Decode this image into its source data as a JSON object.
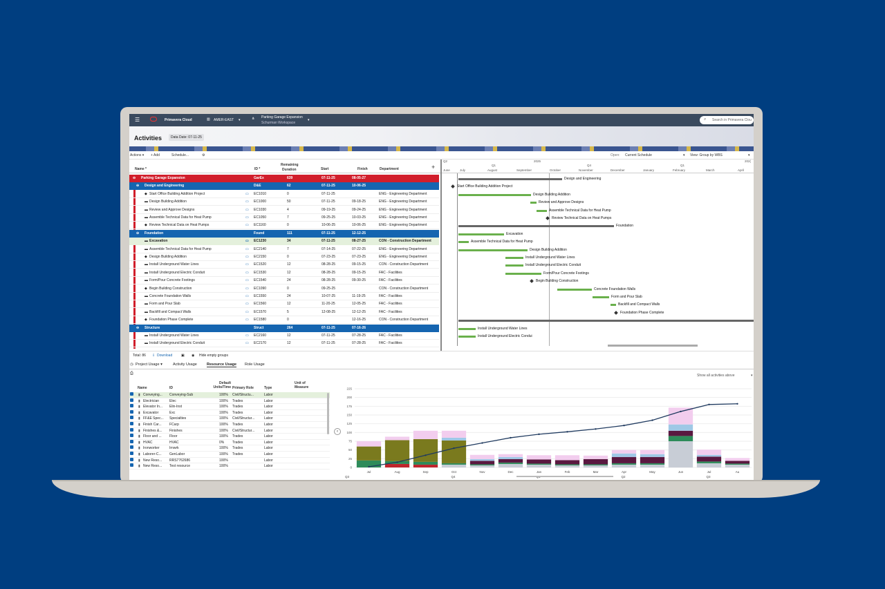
{
  "app": {
    "name": "Primavera Cloud",
    "region": "AMER-EAST",
    "project": "Parking Garage Expansion",
    "workspace": "Schurman Workspace",
    "search_placeholder": "Search in Primavera Clou"
  },
  "page": {
    "title": "Activities",
    "data_date": "Data Date: 07-11-25"
  },
  "toolbar": {
    "actions": "Actions ▾",
    "add": "+ Add",
    "schedule": "Schedule...",
    "open_label": "Open:",
    "open_value": "Current Schedule",
    "view_label": "View: Group by WBS"
  },
  "grid": {
    "columns": {
      "name": "Name *",
      "id": "ID *",
      "remaining": "Remaining",
      "duration": "Duration",
      "start": "Start",
      "finish": "Finish",
      "department": "Department"
    },
    "rows": [
      {
        "kind": "top",
        "name": "Parking Garage Expansion",
        "id": "GarEx",
        "dur": "639",
        "start": "07-11-25",
        "finish": "08-05-27",
        "dept": ""
      },
      {
        "kind": "wbs",
        "name": "Design and Engineering",
        "id": "D&E",
        "dur": "62",
        "start": "07-11-25",
        "finish": "10-06-25",
        "dept": ""
      },
      {
        "kind": "act",
        "name": "Start Office Building Addition Project",
        "id": "EC1010",
        "dur": "0",
        "start": "07-11-25",
        "finish": "",
        "dept": "ENG - Engineering Department"
      },
      {
        "kind": "act",
        "name": "Design Building Addition",
        "id": "EC1000",
        "dur": "50",
        "start": "07-11-25",
        "finish": "09-18-25",
        "dept": "ENG - Engineering Department"
      },
      {
        "kind": "act",
        "name": "Review and Approve Designs",
        "id": "EC1030",
        "dur": "4",
        "start": "09-19-25",
        "finish": "09-24-25",
        "dept": "ENG - Engineering Department"
      },
      {
        "kind": "act",
        "name": "Assemble Technical Data for Heat Pump",
        "id": "EC1050",
        "dur": "7",
        "start": "09-25-25",
        "finish": "10-03-25",
        "dept": "ENG - Engineering Department"
      },
      {
        "kind": "act",
        "name": "Review Technical Data on Heat Pumps",
        "id": "EC1160",
        "dur": "0",
        "start": "10-06-25",
        "finish": "10-06-25",
        "dept": "ENG - Engineering Department"
      },
      {
        "kind": "wbs",
        "name": "Foundation",
        "id": "Found",
        "dur": "111",
        "start": "07-11-25",
        "finish": "12-12-25",
        "dept": ""
      },
      {
        "kind": "sel",
        "name": "Excavation",
        "id": "EC1230",
        "dur": "34",
        "start": "07-11-25",
        "finish": "08-27-25",
        "dept": "CON - Construction Department"
      },
      {
        "kind": "act",
        "name": "Assemble Technical Data for Heat Pump",
        "id": "EC2140",
        "dur": "7",
        "start": "07-14-25",
        "finish": "07-22-25",
        "dept": "ENG - Engineering Department"
      },
      {
        "kind": "act",
        "name": "Design Building Addition",
        "id": "EC2150",
        "dur": "0",
        "start": "07-23-25",
        "finish": "07-23-25",
        "dept": "ENG - Engineering Department"
      },
      {
        "kind": "act",
        "name": "Install Underground Water Lines",
        "id": "EC1520",
        "dur": "12",
        "start": "08-28-25",
        "finish": "09-15-25",
        "dept": "CON - Construction Department"
      },
      {
        "kind": "act",
        "name": "Install Underground Electric Conduit",
        "id": "EC1530",
        "dur": "12",
        "start": "08-28-25",
        "finish": "09-15-25",
        "dept": "FAC - Facilities"
      },
      {
        "kind": "act",
        "name": "Form/Pour Concrete Footings",
        "id": "EC1540",
        "dur": "24",
        "start": "08-28-25",
        "finish": "09-30-25",
        "dept": "FAC - Facilities"
      },
      {
        "kind": "act",
        "name": "Begin Building Construction",
        "id": "EC1090",
        "dur": "0",
        "start": "09-25-25",
        "finish": "",
        "dept": "CON - Construction Department"
      },
      {
        "kind": "act",
        "name": "Concrete Foundation Walls",
        "id": "EC1550",
        "dur": "24",
        "start": "10-07-25",
        "finish": "11-19-25",
        "dept": "FAC - Facilities"
      },
      {
        "kind": "act",
        "name": "Form and Pour Slab",
        "id": "EC1560",
        "dur": "12",
        "start": "11-20-25",
        "finish": "12-05-25",
        "dept": "FAC - Facilities"
      },
      {
        "kind": "act",
        "name": "Backfill and Compact Walls",
        "id": "EC1570",
        "dur": "5",
        "start": "12-08-25",
        "finish": "12-12-25",
        "dept": "FAC - Facilities"
      },
      {
        "kind": "act",
        "name": "Foundation Phase Complete",
        "id": "EC1580",
        "dur": "0",
        "start": "",
        "finish": "12-16-25",
        "dept": "CON - Construction Department"
      },
      {
        "kind": "wbs",
        "name": "Structure",
        "id": "Struct",
        "dur": "264",
        "start": "07-11-25",
        "finish": "07-16-26",
        "dept": ""
      },
      {
        "kind": "act",
        "name": "Install Underground Water Lines",
        "id": "EC2160",
        "dur": "12",
        "start": "07-11-25",
        "finish": "07-28-25",
        "dept": "FAC - Facilities"
      },
      {
        "kind": "act",
        "name": "Install Underground Electric Conduit",
        "id": "EC2170",
        "dur": "12",
        "start": "07-11-25",
        "finish": "07-28-25",
        "dept": "FAC - Facilities"
      }
    ]
  },
  "gantt": {
    "year": "2025",
    "next_year": "202(",
    "quarters": [
      "Q2",
      "Q1",
      "Q4",
      "Q1"
    ],
    "months": [
      "June",
      "July",
      "August",
      "September",
      "October",
      "November",
      "December",
      "January",
      "February",
      "March",
      "April"
    ],
    "labels": [
      "Design and Engineering",
      "Start Office Building Addition Project",
      "Design Building Addition",
      "Review and Approve Designs",
      "Assemble Technical Data for Heat Pump",
      "Review Technical Data on Heat Pumps",
      "Foundation",
      "Excavation",
      "Assemble Technical Data for Heat Pump",
      "Design Building Addition",
      "Install Underground Water Lines",
      "Install Underground Electric Conduit",
      "Form/Pour Concrete Footings",
      "Begin Building Construction",
      "Concrete Foundation Walls",
      "Form and Pour Slab",
      "Backfill and Compact Walls",
      "Foundation Phase Complete",
      "Install Underground Water Lines",
      "Install Underground Electric Condui"
    ]
  },
  "footer": {
    "total": "Total: 86",
    "download": "Download",
    "hide_empty": "Hide empty groups"
  },
  "bottom_tabs": {
    "project_usage": "Project Usage ▾",
    "activity": "Activity Usage",
    "resource": "Resource Usage",
    "role": "Role Usage",
    "show_all": "Show all activities above"
  },
  "resource_table": {
    "headers": {
      "name": "Name",
      "id": "ID",
      "units": "Default Units/Time",
      "role": "Primary Role",
      "type": "Type",
      "uom": "Unit of Measure"
    },
    "rows": [
      {
        "name": "Conveying...",
        "id": "Conveying-Sub",
        "units": "100%",
        "role": "Civil/Structu...",
        "type": "Labor"
      },
      {
        "name": "Electrician",
        "id": "Elec",
        "units": "100%",
        "role": "Trades",
        "type": "Labor"
      },
      {
        "name": "Elevator In...",
        "id": "Elin-Inst",
        "units": "100%",
        "role": "Trades",
        "type": "Labor"
      },
      {
        "name": "Excavator",
        "id": "Exc",
        "units": "100%",
        "role": "Trades",
        "type": "Labor"
      },
      {
        "name": "FF&E Spec...",
        "id": "Specialties",
        "units": "100%",
        "role": "Civil/Structur...",
        "type": "Labor"
      },
      {
        "name": "Finish Car...",
        "id": "FCarp",
        "units": "100%",
        "role": "Trades",
        "type": "Labor"
      },
      {
        "name": "Finishes &...",
        "id": "Finishes",
        "units": "100%",
        "role": "Civil/Structur...",
        "type": "Labor"
      },
      {
        "name": "Floor and ...",
        "id": "Floor",
        "units": "100%",
        "role": "Trades",
        "type": "Labor"
      },
      {
        "name": "HVAC",
        "id": "HVAC",
        "units": "0%",
        "role": "Trades",
        "type": "Labor"
      },
      {
        "name": "Ironworker",
        "id": "Irnwrk",
        "units": "100%",
        "role": "Trades",
        "type": "Labor"
      },
      {
        "name": "Laborer-C...",
        "id": "GenLabor",
        "units": "100%",
        "role": "Trades",
        "type": "Labor"
      },
      {
        "name": "New Reso...",
        "id": "RRS7762686",
        "units": "100%",
        "role": "",
        "type": "Labor"
      },
      {
        "name": "New Reso...",
        "id": "Test resource",
        "units": "100%",
        "role": "",
        "type": "Labor"
      }
    ]
  },
  "chart_data": {
    "type": "bar",
    "categories": [
      "Jul",
      "Aug",
      "Sep",
      "Oct",
      "Nov",
      "Dec",
      "Jan",
      "Feb",
      "Mar",
      "Apr",
      "May",
      "Jun",
      "Jul",
      "Au"
    ],
    "quarter_labels": [
      "Q3",
      "Q4",
      "Q1",
      "Q2",
      "Q3"
    ],
    "yticks": [
      0,
      25,
      50,
      75,
      100,
      125,
      150,
      175,
      200,
      225
    ],
    "ylim": [
      0,
      225
    ],
    "series": [
      {
        "color": "#c8cdd6",
        "values": [
          0,
          0,
          0,
          8,
          6,
          10,
          8,
          6,
          6,
          8,
          8,
          75,
          12,
          8
        ]
      },
      {
        "color": "#c0262d",
        "values": [
          0,
          10,
          8,
          0,
          0,
          0,
          0,
          0,
          0,
          0,
          0,
          0,
          0,
          0
        ]
      },
      {
        "color": "#2e8b5a",
        "values": [
          20,
          8,
          8,
          4,
          3,
          4,
          3,
          3,
          3,
          4,
          4,
          15,
          5,
          3
        ]
      },
      {
        "color": "#7a7a1e",
        "values": [
          40,
          60,
          65,
          65,
          0,
          0,
          0,
          0,
          0,
          0,
          0,
          0,
          0,
          0
        ]
      },
      {
        "color": "#5a1840",
        "values": [
          0,
          0,
          0,
          0,
          10,
          10,
          12,
          12,
          15,
          18,
          18,
          15,
          14,
          8
        ]
      },
      {
        "color": "#9fc8e6",
        "values": [
          0,
          0,
          0,
          8,
          5,
          6,
          0,
          0,
          0,
          10,
          8,
          18,
          5,
          0
        ]
      },
      {
        "color": "#f2cdee",
        "values": [
          15,
          10,
          24,
          20,
          12,
          8,
          12,
          14,
          10,
          10,
          12,
          48,
          15,
          8
        ]
      }
    ],
    "cumulative": [
      2,
      15,
      35,
      55,
      70,
      85,
      95,
      102,
      110,
      120,
      135,
      160,
      180,
      182
    ]
  }
}
